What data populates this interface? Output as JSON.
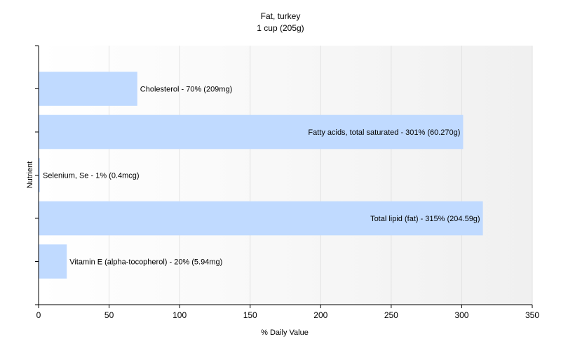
{
  "chart_data": {
    "type": "bar",
    "orientation": "horizontal",
    "title": "Fat, turkey",
    "subtitle": "1 cup (205g)",
    "xlabel": "% Daily Value",
    "ylabel": "Nutrient",
    "xlim": [
      0,
      350
    ],
    "xticks": [
      0,
      50,
      100,
      150,
      200,
      250,
      300,
      350
    ],
    "grid": true,
    "bar_color": "#c0daff",
    "bars": [
      {
        "name": "Cholesterol",
        "value": 70,
        "label": "Cholesterol - 70% (209mg)"
      },
      {
        "name": "Fatty acids, total saturated",
        "value": 301,
        "label": "Fatty acids, total saturated - 301% (60.270g)"
      },
      {
        "name": "Selenium, Se",
        "value": 1,
        "label": "Selenium, Se - 1% (0.4mcg)"
      },
      {
        "name": "Total lipid (fat)",
        "value": 315,
        "label": "Total lipid (fat) - 315% (204.59g)"
      },
      {
        "name": "Vitamin E (alpha-tocopherol)",
        "value": 20,
        "label": "Vitamin E (alpha-tocopherol) - 20% (5.94mg)"
      }
    ]
  }
}
